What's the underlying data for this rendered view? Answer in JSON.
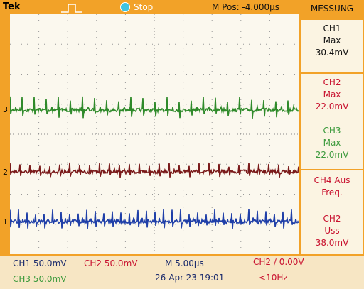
{
  "header": {
    "brand": "Tek",
    "status": "Stop",
    "position": "M Pos: -4.000µs"
  },
  "channel_markers": [
    "3",
    "2",
    "1"
  ],
  "panel": {
    "title": "MESSUNG",
    "measurements": [
      [
        "CH1",
        "Max",
        "30.4mV"
      ],
      [
        "CH2",
        "Max",
        "22.0mV"
      ],
      [
        "CH3",
        "Max",
        "22.0mV"
      ],
      [
        "CH4 Aus",
        "Freq."
      ],
      [
        "CH2",
        "Uss",
        "38.0mV"
      ]
    ]
  },
  "footer": {
    "ch1_scale": "CH1  50.0mV",
    "ch2_scale": "CH2  50.0mV",
    "time_scale": "M 5.00µs",
    "trigger": "CH2 ∕ 0.00V",
    "ch3_scale": "CH3  50.0mV",
    "datetime": "26-Apr-23 19:01",
    "frequency": "<10Hz"
  }
}
